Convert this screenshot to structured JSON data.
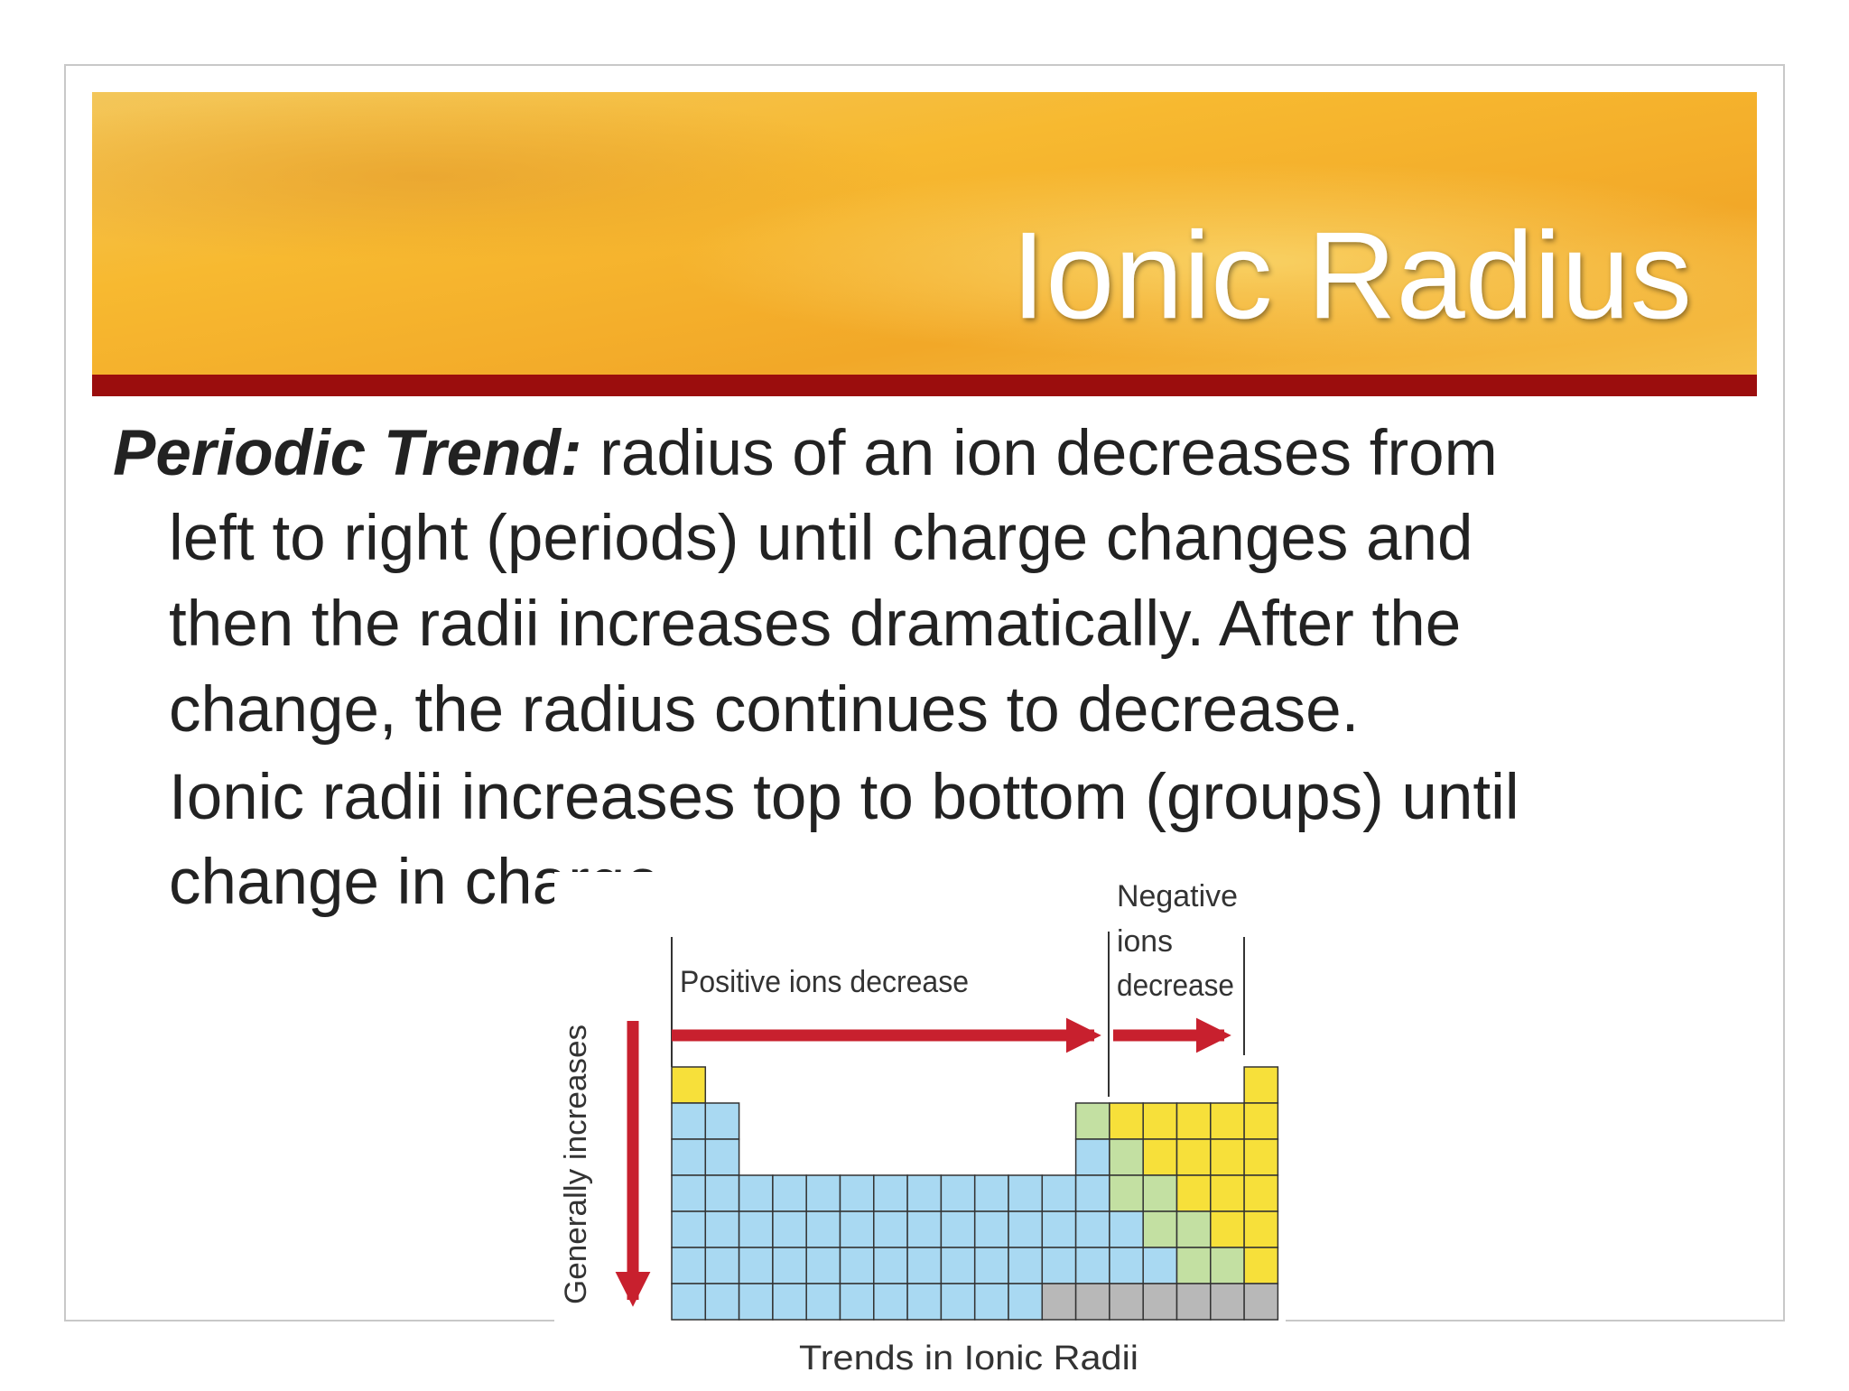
{
  "header": {
    "title": "Ionic Radius"
  },
  "body": {
    "lead": "Periodic Trend:",
    "lines": [
      " radius of an ion decreases from",
      "left to right (periods) until charge changes and",
      "then the radii increases dramatically. After the",
      "change, the radius continues to decrease.",
      "Ionic radii increases top to bottom (groups) until",
      "change in charge."
    ]
  },
  "diagram": {
    "positive_label": "Positive ions decrease",
    "negative_label": [
      "Negative",
      "ions",
      "decrease"
    ],
    "vertical_label": "Generally increases",
    "caption": "Trends in Ionic Radii"
  }
}
